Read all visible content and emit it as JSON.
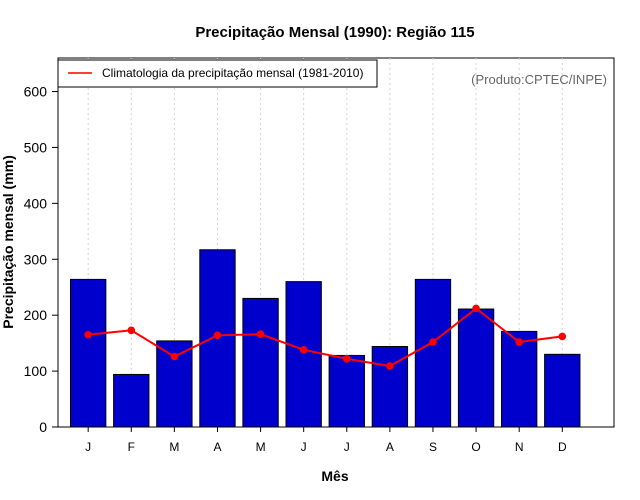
{
  "chart_data": {
    "type": "bar",
    "title": "Precipitação Mensal (1990): Região 115",
    "xlabel": "Mês",
    "ylabel": "Precipitação mensal (mm)",
    "categories": [
      "J",
      "F",
      "M",
      "A",
      "M",
      "J",
      "J",
      "A",
      "S",
      "O",
      "N",
      "D"
    ],
    "series": [
      {
        "name": "Precipitação mensal (1990)",
        "type": "bar",
        "color": "#0000cd",
        "values": [
          264,
          94,
          154,
          317,
          230,
          260,
          128,
          144,
          264,
          211,
          171,
          130
        ]
      },
      {
        "name": "Climatologia da precipitação mensal (1981-2010)",
        "type": "line",
        "color": "#ff0000",
        "values": [
          165,
          173,
          126,
          164,
          166,
          138,
          122,
          109,
          152,
          212,
          152,
          162
        ]
      }
    ],
    "ylim": [
      0,
      660
    ],
    "yticks": [
      0,
      100,
      200,
      300,
      400,
      500,
      600
    ],
    "grid": "vertical-dotted",
    "legend": {
      "position": "top-left",
      "entries": [
        "Climatologia da precipitação mensal (1981-2010)"
      ]
    },
    "annotation": "(Produto:CPTEC/INPE)"
  }
}
